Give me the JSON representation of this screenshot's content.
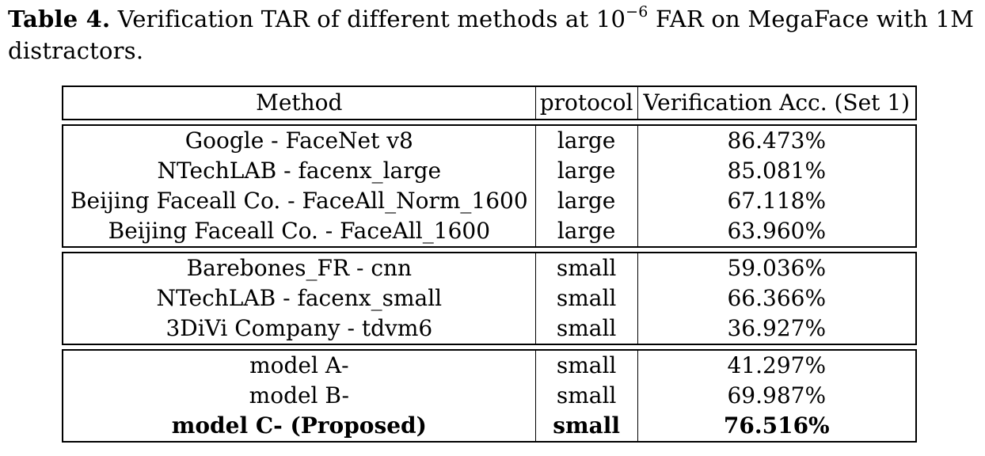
{
  "caption": {
    "label": "Table 4.",
    "text_before_exp": "Verification TAR of different methods at 10",
    "exponent": "−6",
    "text_after_exp": " FAR on MegaFace with 1M distractors."
  },
  "table": {
    "headers": [
      "Method",
      "protocol",
      "Verification Acc. (Set 1)"
    ],
    "groups": [
      {
        "rows": [
          {
            "method": "Google - FaceNet v8",
            "protocol": "large",
            "acc": "86.473%"
          },
          {
            "method": "NTechLAB - facenx_large",
            "protocol": "large",
            "acc": "85.081%"
          },
          {
            "method": "Beijing Faceall Co. - FaceAll_Norm_1600",
            "protocol": "large",
            "acc": "67.118%"
          },
          {
            "method": "Beijing Faceall Co. - FaceAll_1600",
            "protocol": "large",
            "acc": "63.960%"
          }
        ]
      },
      {
        "rows": [
          {
            "method": "Barebones_FR - cnn",
            "protocol": "small",
            "acc": "59.036%"
          },
          {
            "method": "NTechLAB - facenx_small",
            "protocol": "small",
            "acc": "66.366%"
          },
          {
            "method": "3DiVi Company - tdvm6",
            "protocol": "small",
            "acc": "36.927%"
          }
        ]
      },
      {
        "rows": [
          {
            "method": "model A-",
            "protocol": "small",
            "acc": "41.297%"
          },
          {
            "method": "model B-",
            "protocol": "small",
            "acc": "69.987%"
          },
          {
            "method": "model C- (Proposed)",
            "protocol": "small",
            "acc": "76.516%",
            "bold": true
          }
        ]
      }
    ]
  }
}
